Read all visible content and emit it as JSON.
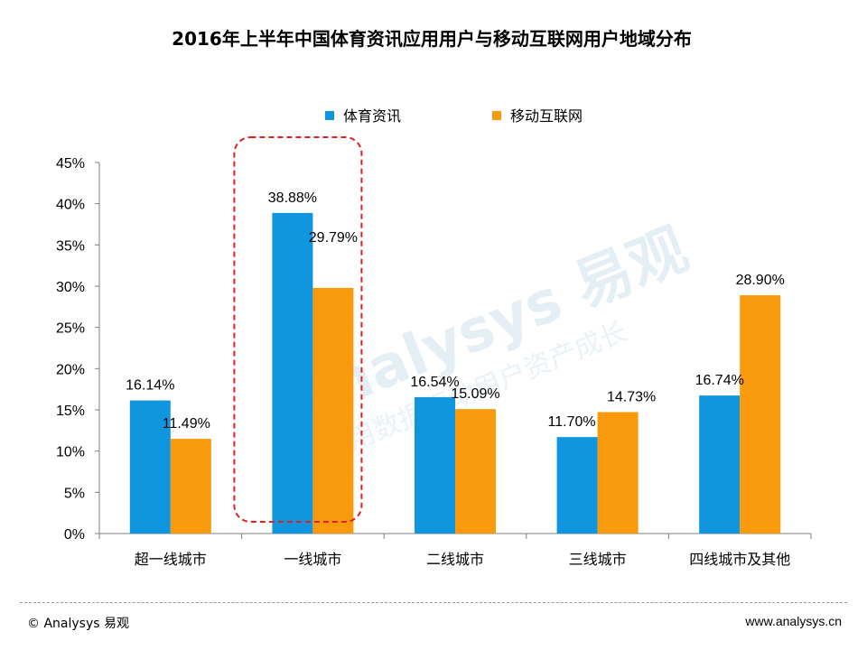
{
  "chart_data": {
    "type": "bar",
    "title": "2016年上半年中国体育资讯应用用户与移动互联网用户地域分布",
    "categories": [
      "超一线城市",
      "一线城市",
      "二线城市",
      "三线城市",
      "四线城市及其他"
    ],
    "series": [
      {
        "name": "体育资讯",
        "values": [
          16.14,
          38.88,
          16.54,
          11.7,
          16.74
        ],
        "labels": [
          "16.14%",
          "38.88%",
          "16.54%",
          "11.70%",
          "16.74%"
        ],
        "color": "#0f96df"
      },
      {
        "name": "移动互联网",
        "values": [
          11.49,
          29.79,
          15.09,
          14.73,
          28.9
        ],
        "labels": [
          "11.49%",
          "29.79%",
          "15.09%",
          "14.73%",
          "28.90%"
        ],
        "color": "#f89a0c"
      }
    ],
    "ylim": [
      0,
      45
    ],
    "yticks": [
      0,
      5,
      10,
      15,
      20,
      25,
      30,
      35,
      40,
      45
    ],
    "ytick_labels": [
      "0%",
      "5%",
      "10%",
      "15%",
      "20%",
      "25%",
      "30%",
      "35%",
      "40%",
      "45%"
    ],
    "xlabel": "",
    "ylabel": "",
    "legend_position": "top-center",
    "highlight_category": "一线城市",
    "highlight_color": "#e02020"
  },
  "watermark": {
    "brand": "Analysys 易观",
    "slogan": "用数据驱动用户资产成长"
  },
  "footer": {
    "left": "© Analysys 易观",
    "right": "www.analysys.cn"
  }
}
